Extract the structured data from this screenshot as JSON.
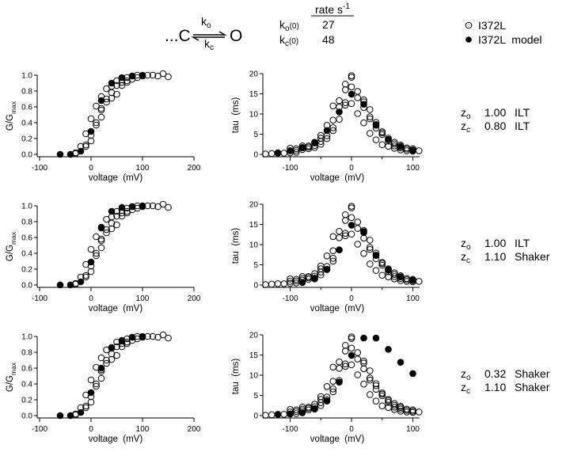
{
  "header": {
    "scheme": {
      "left": "...C",
      "right": "O",
      "k_forward": "k",
      "k_forward_sub": "o",
      "k_backward": "k",
      "k_backward_sub": "c"
    },
    "rate_table": {
      "title": "rate s",
      "title_sup": "-1",
      "rows": [
        {
          "k": "k",
          "sub": "o",
          "arg": "(0)",
          "value": "27"
        },
        {
          "k": "k",
          "sub": "c",
          "arg": "(0)",
          "value": "48"
        }
      ]
    },
    "legend": [
      {
        "label": "I372L",
        "marker": "open-circle"
      },
      {
        "label": "I372L  model",
        "marker": "filled-circle"
      }
    ]
  },
  "params": [
    {
      "rows": [
        {
          "z": "z",
          "sub": "o",
          "value": "1.00",
          "source": "ILT"
        },
        {
          "z": "z",
          "sub": "c",
          "value": "0.80",
          "source": "ILT"
        }
      ]
    },
    {
      "rows": [
        {
          "z": "z",
          "sub": "o",
          "value": "1.00",
          "source": "ILT"
        },
        {
          "z": "z",
          "sub": "c",
          "value": "1.10",
          "source": "Shaker"
        }
      ]
    },
    {
      "rows": [
        {
          "z": "z",
          "sub": "o",
          "value": "0.32",
          "source": "Shaker"
        },
        {
          "z": "z",
          "sub": "c",
          "value": "1.10",
          "source": "Shaker"
        }
      ]
    }
  ],
  "axes": {
    "g": {
      "xlabel": "voltage  (mV)",
      "ylabel": "G/G",
      "ylabel_sub": "max",
      "xticks": [
        "-100",
        "0",
        "100",
        "200"
      ],
      "yticks": [
        "0.0",
        "0.2",
        "0.4",
        "0.6",
        "0.8",
        "1.0"
      ]
    },
    "tau": {
      "xlabel": "voltage  (mV)",
      "ylabel": "tau  (ms)",
      "xticks": [
        "-100",
        "0",
        "100"
      ],
      "yticks": [
        "0",
        "5",
        "10",
        "15",
        "20"
      ]
    }
  },
  "chart_data": [
    {
      "type": "scatter",
      "row": 1,
      "panel": "G/Gmax",
      "xlim": [
        -100,
        200
      ],
      "ylim": [
        0,
        1
      ],
      "series": [
        {
          "name": "I372L",
          "marker": "open",
          "points": "g_data"
        },
        {
          "name": "I372L  model",
          "marker": "filled",
          "points": [
            [
              -60,
              0
            ],
            [
              -40,
              0
            ],
            [
              -20,
              0.04
            ],
            [
              0,
              0.29
            ],
            [
              20,
              0.68
            ],
            [
              40,
              0.9
            ],
            [
              60,
              0.97
            ],
            [
              80,
              0.99
            ],
            [
              100,
              1.0
            ]
          ]
        }
      ]
    },
    {
      "type": "scatter",
      "row": 1,
      "panel": "tau",
      "xlim": [
        -145,
        110
      ],
      "ylim": [
        0,
        20
      ],
      "series": [
        {
          "name": "I372L",
          "marker": "open",
          "points": "tau_data"
        },
        {
          "name": "I372L  model",
          "marker": "filled",
          "points": [
            [
              -120,
              0.4
            ],
            [
              -100,
              0.9
            ],
            [
              -80,
              1.7
            ],
            [
              -60,
              3.0
            ],
            [
              -40,
              5.9
            ],
            [
              -20,
              10.5
            ],
            [
              0,
              14.9
            ],
            [
              20,
              12.4
            ],
            [
              40,
              7.2
            ],
            [
              60,
              3.7
            ],
            [
              80,
              1.9
            ],
            [
              100,
              1.0
            ]
          ]
        }
      ]
    },
    {
      "type": "scatter",
      "row": 2,
      "panel": "G/Gmax",
      "xlim": [
        -100,
        200
      ],
      "ylim": [
        0,
        1
      ],
      "series": [
        {
          "name": "I372L",
          "marker": "open",
          "points": "g_data"
        },
        {
          "name": "I372L  model",
          "marker": "filled",
          "points": [
            [
              -60,
              0
            ],
            [
              -40,
              0
            ],
            [
              -20,
              0.04
            ],
            [
              0,
              0.29
            ],
            [
              20,
              0.72
            ],
            [
              40,
              0.93
            ],
            [
              60,
              0.98
            ],
            [
              80,
              0.99
            ],
            [
              100,
              1.0
            ]
          ]
        }
      ]
    },
    {
      "type": "scatter",
      "row": 2,
      "panel": "tau",
      "xlim": [
        -145,
        110
      ],
      "ylim": [
        0,
        20
      ],
      "series": [
        {
          "name": "I372L",
          "marker": "open",
          "points": "tau_data"
        },
        {
          "name": "I372L  model",
          "marker": "filled",
          "points": [
            [
              -80,
              0.6
            ],
            [
              -60,
              1.5
            ],
            [
              -40,
              3.8
            ],
            [
              -20,
              8.7
            ],
            [
              0,
              14.8
            ],
            [
              20,
              13.2
            ],
            [
              40,
              7.3
            ],
            [
              60,
              3.8
            ],
            [
              80,
              2.0
            ],
            [
              100,
              1.2
            ]
          ]
        }
      ]
    },
    {
      "type": "scatter",
      "row": 3,
      "panel": "G/Gmax",
      "xlim": [
        -100,
        200
      ],
      "ylim": [
        0,
        1
      ],
      "series": [
        {
          "name": "I372L",
          "marker": "open",
          "points": "g_data"
        },
        {
          "name": "I372L  model",
          "marker": "filled",
          "points": [
            [
              -60,
              0
            ],
            [
              -40,
              0
            ],
            [
              -20,
              0.04
            ],
            [
              0,
              0.29
            ],
            [
              20,
              0.6
            ],
            [
              40,
              0.85
            ],
            [
              60,
              0.95
            ],
            [
              80,
              0.99
            ],
            [
              100,
              1.0
            ]
          ]
        }
      ]
    },
    {
      "type": "scatter",
      "row": 3,
      "panel": "tau",
      "xlim": [
        -145,
        110
      ],
      "ylim": [
        0,
        20
      ],
      "series": [
        {
          "name": "I372L",
          "marker": "open",
          "points": "tau_data"
        },
        {
          "name": "I372L  model",
          "marker": "filled",
          "points": [
            [
              -120,
              0.3
            ],
            [
              -100,
              0.4
            ],
            [
              -80,
              0.7
            ],
            [
              -60,
              1.6
            ],
            [
              -40,
              3.6
            ],
            [
              -20,
              8.3
            ],
            [
              0,
              14.9
            ],
            [
              20,
              19.2
            ],
            [
              40,
              19.2
            ],
            [
              60,
              16.4
            ],
            [
              80,
              13.2
            ],
            [
              100,
              10.4
            ]
          ]
        }
      ]
    }
  ],
  "g_data": [
    [
      -30,
      0.01
    ],
    [
      -30,
      0.02
    ],
    [
      -20,
      0.1
    ],
    [
      -10,
      0.1
    ],
    [
      -10,
      0.12
    ],
    [
      -10,
      0.26
    ],
    [
      0,
      0.17
    ],
    [
      0,
      0.24
    ],
    [
      0,
      0.45
    ],
    [
      10,
      0.37
    ],
    [
      10,
      0.4
    ],
    [
      10,
      0.61
    ],
    [
      20,
      0.47
    ],
    [
      20,
      0.56
    ],
    [
      20,
      0.58
    ],
    [
      20,
      0.73
    ],
    [
      30,
      0.66
    ],
    [
      30,
      0.7
    ],
    [
      30,
      0.83
    ],
    [
      40,
      0.71
    ],
    [
      40,
      0.78
    ],
    [
      40,
      0.86
    ],
    [
      50,
      0.76
    ],
    [
      50,
      0.87
    ],
    [
      50,
      0.93
    ],
    [
      60,
      0.87
    ],
    [
      60,
      0.91
    ],
    [
      60,
      0.94
    ],
    [
      70,
      0.91
    ],
    [
      70,
      0.93
    ],
    [
      70,
      0.97
    ],
    [
      80,
      0.95
    ],
    [
      80,
      0.99
    ],
    [
      90,
      0.97
    ],
    [
      90,
      1.0
    ],
    [
      100,
      0.99
    ],
    [
      110,
      1.0
    ],
    [
      120,
      1.0
    ],
    [
      130,
      0.99
    ],
    [
      140,
      1.02
    ],
    [
      150,
      0.98
    ]
  ],
  "tau_data": [
    [
      -140,
      0.1
    ],
    [
      -130,
      0.2
    ],
    [
      -120,
      0.3
    ],
    [
      -110,
      0.3
    ],
    [
      -100,
      0.4
    ],
    [
      -100,
      0.9
    ],
    [
      -100,
      1.5
    ],
    [
      -90,
      0.5
    ],
    [
      -90,
      1.0
    ],
    [
      -90,
      1.4
    ],
    [
      -80,
      1.2
    ],
    [
      -80,
      1.6
    ],
    [
      -80,
      2.1
    ],
    [
      -70,
      1.4
    ],
    [
      -70,
      1.8
    ],
    [
      -70,
      2.1
    ],
    [
      -60,
      1.7
    ],
    [
      -60,
      2.2
    ],
    [
      -60,
      2.8
    ],
    [
      -50,
      2.5
    ],
    [
      -50,
      3.2
    ],
    [
      -50,
      4.0
    ],
    [
      -50,
      4.7
    ],
    [
      -40,
      3.9
    ],
    [
      -40,
      4.6
    ],
    [
      -40,
      7.2
    ],
    [
      -30,
      5.9
    ],
    [
      -30,
      6.6
    ],
    [
      -30,
      8.5
    ],
    [
      -30,
      12.0
    ],
    [
      -20,
      8.7
    ],
    [
      -20,
      11.7
    ],
    [
      -20,
      13.3
    ],
    [
      -10,
      12.2
    ],
    [
      -10,
      12.8
    ],
    [
      -10,
      16.0
    ],
    [
      -10,
      17.4
    ],
    [
      0,
      12.6
    ],
    [
      0,
      16.7
    ],
    [
      0,
      19.1
    ],
    [
      0,
      19.5
    ],
    [
      10,
      10.1
    ],
    [
      10,
      14.0
    ],
    [
      10,
      15.6
    ],
    [
      20,
      7.8
    ],
    [
      20,
      11.6
    ],
    [
      20,
      13.0
    ],
    [
      20,
      13.5
    ],
    [
      30,
      5.2
    ],
    [
      30,
      8.8
    ],
    [
      30,
      9.3
    ],
    [
      30,
      11.1
    ],
    [
      40,
      3.6
    ],
    [
      40,
      6.5
    ],
    [
      40,
      7.4
    ],
    [
      40,
      7.9
    ],
    [
      50,
      2.4
    ],
    [
      50,
      4.9
    ],
    [
      50,
      5.3
    ],
    [
      50,
      5.6
    ],
    [
      60,
      2.0
    ],
    [
      60,
      3.3
    ],
    [
      60,
      3.7
    ],
    [
      60,
      4.0
    ],
    [
      70,
      1.5
    ],
    [
      70,
      2.1
    ],
    [
      70,
      2.6
    ],
    [
      70,
      3.0
    ],
    [
      80,
      1.1
    ],
    [
      80,
      1.6
    ],
    [
      80,
      2.0
    ],
    [
      80,
      2.3
    ],
    [
      90,
      0.9
    ],
    [
      90,
      1.3
    ],
    [
      90,
      1.6
    ],
    [
      100,
      0.8
    ],
    [
      100,
      1.1
    ],
    [
      100,
      1.4
    ],
    [
      110,
      0.9
    ]
  ]
}
